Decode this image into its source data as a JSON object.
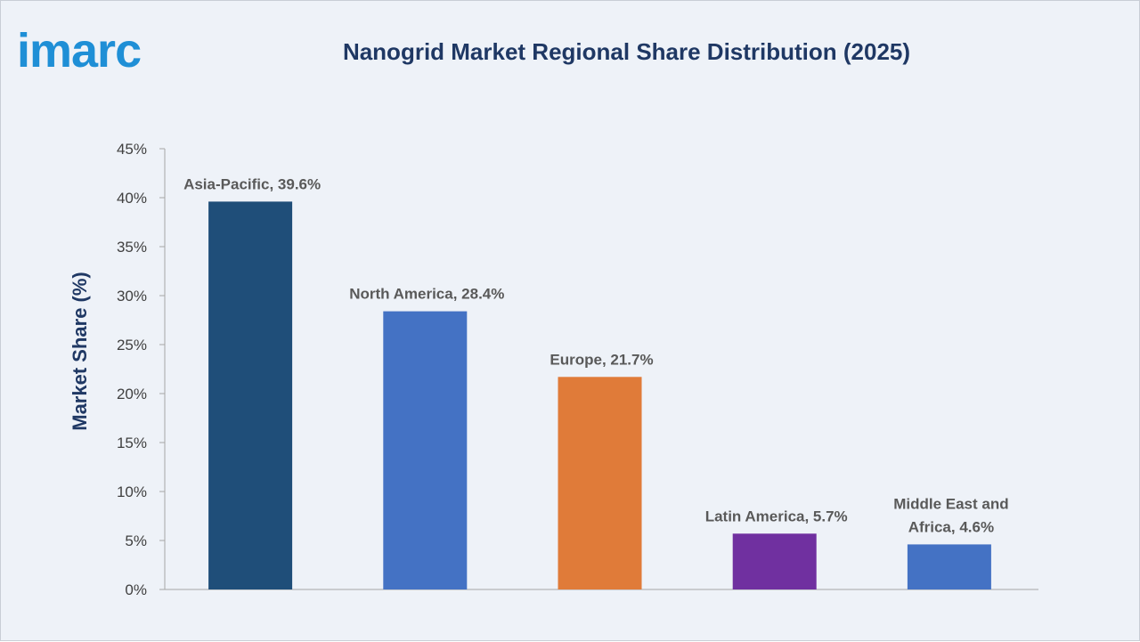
{
  "logo": {
    "text": "imarc"
  },
  "chart_data": {
    "type": "bar",
    "title": "Nanogrid Market Regional Share Distribution (2025)",
    "ylabel": "Market Share (%)",
    "xlabel": "",
    "ylim": [
      0,
      45
    ],
    "yticks": [
      "0%",
      "5%",
      "10%",
      "15%",
      "20%",
      "25%",
      "30%",
      "35%",
      "40%",
      "45%"
    ],
    "grid": false,
    "legend": "none",
    "categories": [
      "Asia-Pacific",
      "North America",
      "Europe",
      "Latin America",
      "Middle East and Africa"
    ],
    "values": [
      39.6,
      28.4,
      21.7,
      5.7,
      4.6
    ],
    "data_labels": [
      [
        "Asia-Pacific, 39.6%"
      ],
      [
        "North America, 28.4%"
      ],
      [
        "Europe, 21.7%"
      ],
      [
        "Latin America, 5.7%"
      ],
      [
        "Middle East and",
        "Africa, 4.6%"
      ]
    ],
    "colors": [
      "#1f4e79",
      "#4472c4",
      "#e07b39",
      "#7030a0",
      "#4472c4"
    ]
  }
}
